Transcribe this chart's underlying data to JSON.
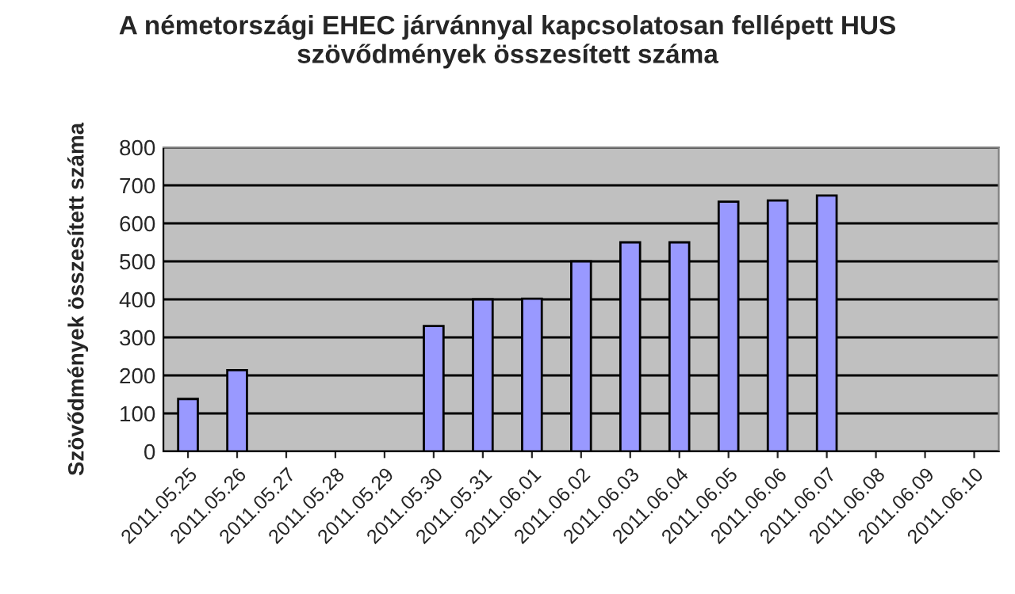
{
  "chart_data": {
    "type": "bar",
    "title": "A németországi EHEC járvánnyal kapcsolatosan fellépett HUS\nszövődmények összesített száma",
    "ylabel": "Szövődmények összesített száma",
    "categories": [
      "2011.05.25",
      "2011.05.26",
      "2011.05.27",
      "2011.05.28",
      "2011.05.29",
      "2011.05.30",
      "2011.05.31",
      "2011.06.01",
      "2011.06.02",
      "2011.06.03",
      "2011.06.04",
      "2011.06.05",
      "2011.06.06",
      "2011.06.07",
      "2011.06.08",
      "2011.06.09",
      "2011.06.10"
    ],
    "values": [
      138,
      214,
      null,
      null,
      null,
      330,
      400,
      402,
      500,
      550,
      550,
      657,
      660,
      673,
      null,
      null,
      null
    ],
    "color": "#9999ff",
    "ylim": [
      0,
      800
    ],
    "yticks": [
      0,
      100,
      200,
      300,
      400,
      500,
      600,
      700,
      800
    ],
    "grid": "y"
  }
}
